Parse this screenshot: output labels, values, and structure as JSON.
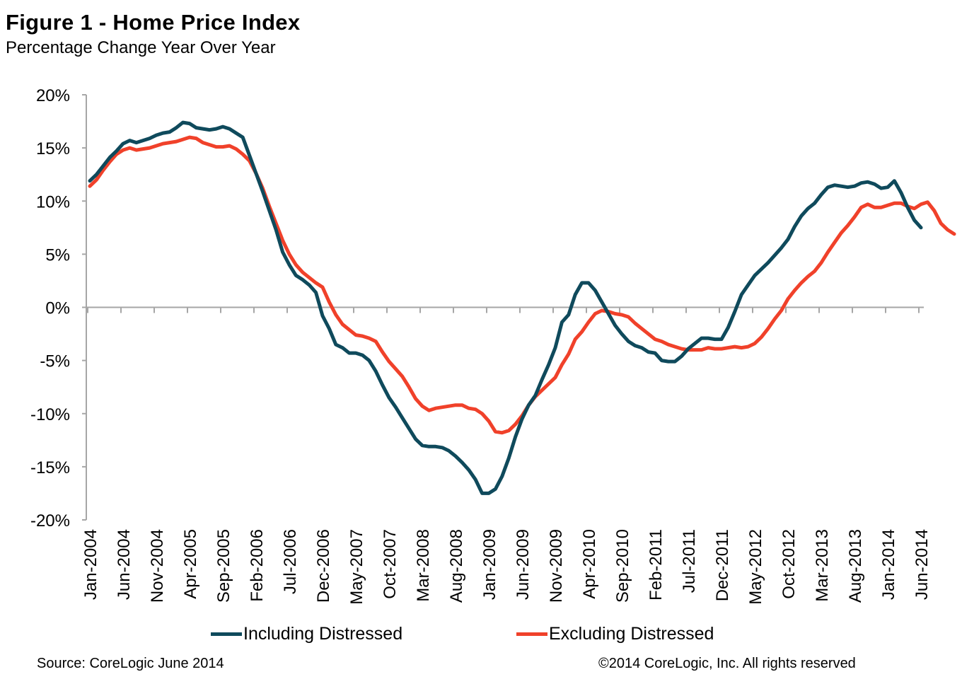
{
  "chart_data": {
    "type": "line",
    "title": "Figure 1 - Home Price Index",
    "subtitle": "Percentage Change Year Over Year",
    "xlabel": "",
    "ylabel": "",
    "ylim": [
      -20,
      20
    ],
    "yticks": [
      20,
      15,
      10,
      5,
      0,
      -5,
      -10,
      -15,
      -20
    ],
    "ytick_labels": [
      "20%",
      "15%",
      "10%",
      "5%",
      "0%",
      "-5%",
      "-10%",
      "-15%",
      "-20%"
    ],
    "x_start": "Jan-2004",
    "x_end": "Jun-2014",
    "x_frequency": "monthly",
    "x_count": 126,
    "xtick_every_months": 5,
    "xtick_labels": [
      "Jan-2004",
      "Jun-2004",
      "Nov-2004",
      "Apr-2005",
      "Sep-2005",
      "Feb-2006",
      "Jul-2006",
      "Dec-2006",
      "May-2007",
      "Oct-2007",
      "Mar-2008",
      "Aug-2008",
      "Jan-2009",
      "Jun-2009",
      "Nov-2009",
      "Apr-2010",
      "Sep-2010",
      "Feb-2011",
      "Jul-2011",
      "Dec-2011",
      "May-2012",
      "Oct-2012",
      "Mar-2013",
      "Aug-2013",
      "Jan-2014",
      "Jun-2014"
    ],
    "grid": false,
    "legend_position": "bottom",
    "series": [
      {
        "name": "Including Distressed",
        "color": "#0f4a5c",
        "values": [
          11.9,
          12.5,
          13.3,
          14.1,
          14.7,
          15.4,
          15.7,
          15.5,
          15.7,
          15.9,
          16.2,
          16.4,
          16.5,
          16.9,
          17.4,
          17.3,
          16.9,
          16.8,
          16.7,
          16.8,
          17.0,
          16.8,
          16.4,
          16.0,
          14.3,
          12.6,
          10.9,
          9.1,
          7.3,
          5.2,
          4.0,
          3.0,
          2.6,
          2.1,
          1.4,
          -0.8,
          -2.0,
          -3.5,
          -3.8,
          -4.3,
          -4.3,
          -4.5,
          -5.0,
          -6.0,
          -7.3,
          -8.5,
          -9.4,
          -10.4,
          -11.4,
          -12.4,
          -13.0,
          -13.1,
          -13.1,
          -13.2,
          -13.5,
          -14.0,
          -14.6,
          -15.3,
          -16.2,
          -17.5,
          -17.5,
          -17.1,
          -15.9,
          -14.2,
          -12.2,
          -10.5,
          -9.2,
          -8.3,
          -6.8,
          -5.4,
          -3.8,
          -1.4,
          -0.7,
          1.2,
          2.3,
          2.3,
          1.6,
          0.5,
          -0.6,
          -1.7,
          -2.5,
          -3.2,
          -3.6,
          -3.8,
          -4.2,
          -4.3,
          -5.0,
          -5.1,
          -5.1,
          -4.6,
          -3.9,
          -3.4,
          -2.9,
          -2.9,
          -3.0,
          -3.0,
          -1.9,
          -0.4,
          1.2,
          2.1,
          3.0,
          3.6,
          4.2,
          4.9,
          5.6,
          6.4,
          7.6,
          8.6,
          9.3,
          9.8,
          10.6,
          11.3,
          11.5,
          11.4,
          11.3,
          11.4,
          11.7,
          11.8,
          11.6,
          11.2,
          11.3,
          11.9,
          10.8,
          9.4,
          8.2,
          7.5
        ]
      },
      {
        "name": "Excluding Distressed",
        "color": "#f0412a",
        "values": [
          11.4,
          12.0,
          12.9,
          13.7,
          14.4,
          14.8,
          15.0,
          14.8,
          14.9,
          15.0,
          15.2,
          15.4,
          15.5,
          15.6,
          15.8,
          16.0,
          15.9,
          15.5,
          15.3,
          15.1,
          15.1,
          15.2,
          14.9,
          14.4,
          13.8,
          12.6,
          11.2,
          9.5,
          7.9,
          6.3,
          5.0,
          4.0,
          3.3,
          2.8,
          2.3,
          1.9,
          0.5,
          -0.7,
          -1.6,
          -2.1,
          -2.6,
          -2.7,
          -2.9,
          -3.2,
          -4.2,
          -5.1,
          -5.8,
          -6.5,
          -7.5,
          -8.6,
          -9.3,
          -9.7,
          -9.5,
          -9.4,
          -9.3,
          -9.2,
          -9.2,
          -9.5,
          -9.6,
          -10.0,
          -10.7,
          -11.7,
          -11.8,
          -11.6,
          -11.0,
          -10.2,
          -9.2,
          -8.4,
          -7.8,
          -7.2,
          -6.6,
          -5.4,
          -4.4,
          -3.0,
          -2.3,
          -1.4,
          -0.6,
          -0.3,
          -0.4,
          -0.6,
          -0.7,
          -0.9,
          -1.5,
          -2.0,
          -2.5,
          -3.0,
          -3.2,
          -3.5,
          -3.7,
          -3.9,
          -4.0,
          -4.0,
          -4.0,
          -3.8,
          -3.9,
          -3.9,
          -3.8,
          -3.7,
          -3.8,
          -3.7,
          -3.4,
          -2.8,
          -2.0,
          -1.1,
          -0.3,
          0.8,
          1.6,
          2.3,
          2.9,
          3.4,
          4.2,
          5.2,
          6.1,
          7.0,
          7.7,
          8.5,
          9.4,
          9.7,
          9.4,
          9.4,
          9.6,
          9.8,
          9.8,
          9.5,
          9.3,
          9.7,
          9.9,
          9.1,
          7.9,
          7.3,
          6.9
        ]
      }
    ]
  },
  "legend": {
    "items": [
      {
        "label": "Including Distressed",
        "color": "#0f4a5c"
      },
      {
        "label": "Excluding Distressed",
        "color": "#f0412a"
      }
    ]
  },
  "footer": {
    "source": "Source: CoreLogic  June 2014",
    "copyright": "©2014 CoreLogic, Inc. All rights reserved"
  }
}
